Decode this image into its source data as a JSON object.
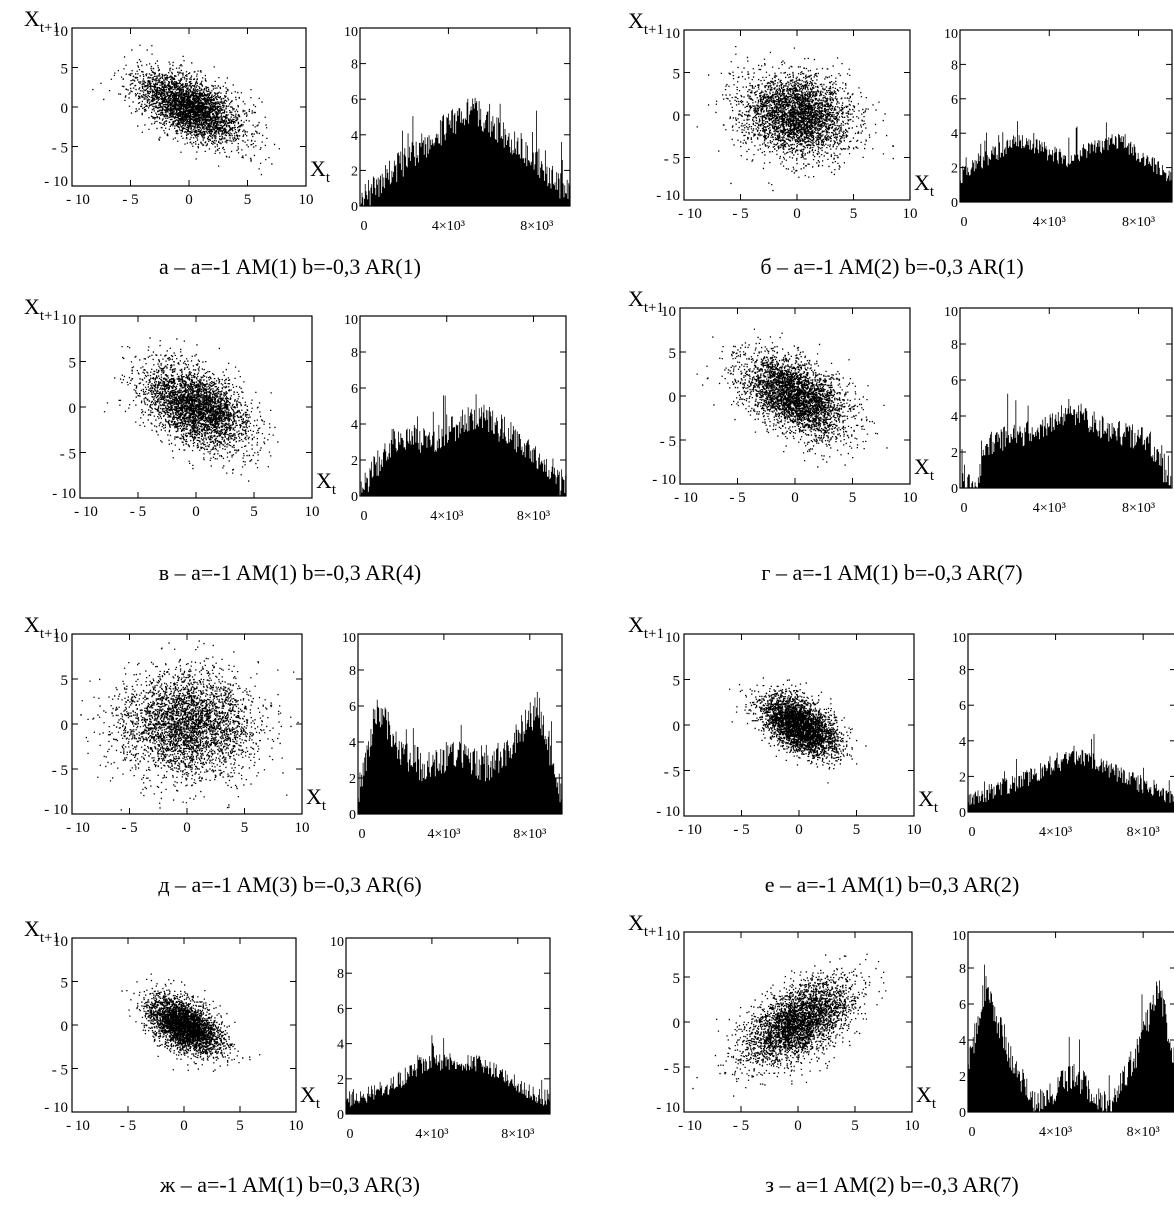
{
  "chart_data": [
    {
      "panel": "а",
      "caption": "а – a=-1 AM(1) b=-0,3 AR(1)",
      "scatter": {
        "type": "scatter",
        "ylabel_base": "X",
        "ylabel_sub": "t+1",
        "xlabel_base": "X",
        "xlabel_sub": "t",
        "xlim": [
          -10,
          10
        ],
        "ylim": [
          -10,
          10
        ],
        "x_ticks": [
          "- 10",
          "- 5",
          "0",
          "5",
          "10"
        ],
        "y_ticks": [
          "10",
          "5",
          "0",
          "- 5",
          "- 10"
        ],
        "spread": 2.2,
        "correlation": -0.55
      },
      "hist": {
        "type": "bar",
        "ylim": [
          0,
          10
        ],
        "y_ticks": [
          "10",
          "8",
          "6",
          "4",
          "2",
          "0"
        ],
        "x_ticks": [
          "0",
          "4×10³",
          "8×10³"
        ],
        "x_tick_values": [
          0,
          4000,
          8000
        ],
        "xlim": [
          0,
          9500
        ],
        "profile": [
          [
            0,
            0.3
          ],
          [
            2000,
            2.5
          ],
          [
            4000,
            4.5
          ],
          [
            5000,
            5.5
          ],
          [
            6000,
            4.5
          ],
          [
            8000,
            2.5
          ],
          [
            9500,
            0.6
          ]
        ],
        "noise": 1.6
      }
    },
    {
      "panel": "б",
      "caption": "б – a=-1 AM(2) b=-0,3 AR(1)",
      "scatter": {
        "type": "scatter",
        "ylabel_base": "X",
        "ylabel_sub": "t+1",
        "xlabel_base": "X",
        "xlabel_sub": "t",
        "xlim": [
          -10,
          10
        ],
        "ylim": [
          -10,
          10
        ],
        "x_ticks": [
          "- 10",
          "- 5",
          "0",
          "5",
          "10"
        ],
        "y_ticks": [
          "10",
          "5",
          "0",
          "- 5",
          "- 10"
        ],
        "spread": 2.4,
        "correlation": -0.1
      },
      "hist": {
        "type": "bar",
        "ylim": [
          0,
          10
        ],
        "y_ticks": [
          "10",
          "8",
          "6",
          "4",
          "2",
          "0"
        ],
        "x_ticks": [
          "0",
          "4×10³",
          "8×10³"
        ],
        "x_tick_values": [
          0,
          4000,
          8000
        ],
        "xlim": [
          0,
          9500
        ],
        "profile": [
          [
            0,
            1.5
          ],
          [
            2500,
            3.6
          ],
          [
            4800,
            2.5
          ],
          [
            7000,
            3.6
          ],
          [
            9500,
            1.5
          ]
        ],
        "noise": 1.0
      }
    },
    {
      "panel": "в",
      "caption": "в – a=-1 AM(1) b=-0,3 AR(4)",
      "scatter": {
        "type": "scatter",
        "ylabel_base": "X",
        "ylabel_sub": "t+1",
        "xlabel_base": "X",
        "xlabel_sub": "t",
        "xlim": [
          -10,
          10
        ],
        "ylim": [
          -10,
          10
        ],
        "x_ticks": [
          "- 10",
          "- 5",
          "0",
          "5",
          "10"
        ],
        "y_ticks": [
          "10",
          "5",
          "0",
          "- 5",
          "- 10"
        ],
        "spread": 2.3,
        "correlation": -0.45
      },
      "hist": {
        "type": "bar",
        "ylim": [
          0,
          10
        ],
        "y_ticks": [
          "10",
          "8",
          "6",
          "4",
          "2",
          "0"
        ],
        "x_ticks": [
          "0",
          "4×10³",
          "8×10³"
        ],
        "x_tick_values": [
          0,
          4000,
          8000
        ],
        "xlim": [
          0,
          9500
        ],
        "profile": [
          [
            0,
            0.3
          ],
          [
            1500,
            3.0
          ],
          [
            3500,
            3.2
          ],
          [
            5500,
            4.5
          ],
          [
            7500,
            3.0
          ],
          [
            9500,
            0.5
          ]
        ],
        "noise": 1.6
      }
    },
    {
      "panel": "г",
      "caption": "г – a=-1 AM(1) b=-0,3 AR(7)",
      "scatter": {
        "type": "scatter",
        "ylabel_base": "X",
        "ylabel_sub": "t+1",
        "xlabel_base": "X",
        "xlabel_sub": "t",
        "xlim": [
          -10,
          10
        ],
        "ylim": [
          -10,
          10
        ],
        "x_ticks": [
          "- 10",
          "- 5",
          "0",
          "5",
          "10"
        ],
        "y_ticks": [
          "10",
          "5",
          "0",
          "- 5",
          "- 10"
        ],
        "spread": 2.3,
        "correlation": -0.5
      },
      "hist": {
        "type": "bar",
        "ylim": [
          0,
          10
        ],
        "y_ticks": [
          "10",
          "8",
          "6",
          "4",
          "2",
          "0"
        ],
        "x_ticks": [
          "0",
          "4×10³",
          "8×10³"
        ],
        "x_tick_values": [
          0,
          4000,
          8000
        ],
        "xlim": [
          0,
          9500
        ],
        "profile": [
          [
            0,
            0
          ],
          [
            800,
            0.2
          ],
          [
            1200,
            2.5
          ],
          [
            3500,
            3.2
          ],
          [
            5000,
            4.3
          ],
          [
            6500,
            3.3
          ],
          [
            8500,
            2.6
          ],
          [
            9300,
            0.4
          ],
          [
            9500,
            0
          ]
        ],
        "noise": 1.4
      }
    },
    {
      "panel": "д",
      "caption": "д – a=-1 AM(3) b=-0,3 AR(6)",
      "scatter": {
        "type": "scatter",
        "ylabel_base": "X",
        "ylabel_sub": "t+1",
        "xlabel_base": "X",
        "xlabel_sub": "t",
        "xlim": [
          -10,
          10
        ],
        "ylim": [
          -10,
          10
        ],
        "x_ticks": [
          "- 10",
          "- 5",
          "0",
          "5",
          "10"
        ],
        "y_ticks": [
          "10",
          "5",
          "0",
          "- 5",
          "- 10"
        ],
        "spread": 2.9,
        "correlation": 0.0
      },
      "hist": {
        "type": "bar",
        "ylim": [
          0,
          10
        ],
        "y_ticks": [
          "10",
          "8",
          "6",
          "4",
          "2",
          "0"
        ],
        "x_ticks": [
          "0",
          "4×10³",
          "8×10³"
        ],
        "x_tick_values": [
          0,
          4000,
          8000
        ],
        "xlim": [
          0,
          9500
        ],
        "profile": [
          [
            0,
            1.0
          ],
          [
            900,
            6.0
          ],
          [
            2000,
            3.5
          ],
          [
            3200,
            2.5
          ],
          [
            4500,
            3.5
          ],
          [
            5800,
            2.5
          ],
          [
            7000,
            3.5
          ],
          [
            8400,
            6.0
          ],
          [
            9500,
            1.0
          ]
        ],
        "noise": 1.8
      }
    },
    {
      "panel": "е",
      "caption": "е – a=-1 AM(1) b=0,3 AR(2)",
      "scatter": {
        "type": "scatter",
        "ylabel_base": "X",
        "ylabel_sub": "t+1",
        "xlabel_base": "X",
        "xlabel_sub": "t",
        "xlim": [
          -10,
          10
        ],
        "ylim": [
          -10,
          10
        ],
        "x_ticks": [
          "- 10",
          "- 5",
          "0",
          "5",
          "10"
        ],
        "y_ticks": [
          "10",
          "5",
          "0",
          "- 5",
          "- 10"
        ],
        "spread": 1.6,
        "correlation": -0.5
      },
      "hist": {
        "type": "bar",
        "ylim": [
          0,
          10
        ],
        "y_ticks": [
          "10",
          "8",
          "6",
          "4",
          "2",
          "0"
        ],
        "x_ticks": [
          "0",
          "4×10³",
          "8×10³"
        ],
        "x_tick_values": [
          0,
          4000,
          8000
        ],
        "xlim": [
          0,
          9500
        ],
        "profile": [
          [
            0,
            0.6
          ],
          [
            2500,
            1.8
          ],
          [
            5000,
            3.2
          ],
          [
            7500,
            1.8
          ],
          [
            9500,
            0.6
          ]
        ],
        "noise": 1.0
      }
    },
    {
      "panel": "ж",
      "caption": "ж – a=-1 AM(1) b=0,3 AR(3)",
      "scatter": {
        "type": "scatter",
        "ylabel_base": "X",
        "ylabel_sub": "t+1",
        "xlabel_base": "X",
        "xlabel_sub": "t",
        "xlim": [
          -10,
          10
        ],
        "ylim": [
          -10,
          10
        ],
        "x_ticks": [
          "- 10",
          "- 5",
          "0",
          "5",
          "10"
        ],
        "y_ticks": [
          "10",
          "5",
          "0",
          "- 5",
          "- 10"
        ],
        "spread": 1.6,
        "correlation": -0.5
      },
      "hist": {
        "type": "bar",
        "ylim": [
          0,
          10
        ],
        "y_ticks": [
          "10",
          "8",
          "6",
          "4",
          "2",
          "0"
        ],
        "x_ticks": [
          "0",
          "4×10³",
          "8×10³"
        ],
        "x_tick_values": [
          0,
          4000,
          8000
        ],
        "xlim": [
          0,
          9500
        ],
        "profile": [
          [
            0,
            0.8
          ],
          [
            2000,
            1.5
          ],
          [
            3500,
            2.8
          ],
          [
            5000,
            3.0
          ],
          [
            6500,
            2.8
          ],
          [
            8000,
            1.5
          ],
          [
            9500,
            0.8
          ]
        ],
        "noise": 1.0
      }
    },
    {
      "panel": "з",
      "caption": "з – a=1 AM(2) b=-0,3 AR(7)",
      "scatter": {
        "type": "scatter",
        "ylabel_base": "X",
        "ylabel_sub": "t+1",
        "xlabel_base": "X",
        "xlabel_sub": "t",
        "xlim": [
          -10,
          10
        ],
        "ylim": [
          -10,
          10
        ],
        "x_ticks": [
          "- 10",
          "- 5",
          "0",
          "5",
          "10"
        ],
        "y_ticks": [
          "10",
          "5",
          "0",
          "- 5",
          "- 10"
        ],
        "spread": 2.3,
        "correlation": 0.55
      },
      "hist": {
        "type": "bar",
        "ylim": [
          0,
          10
        ],
        "y_ticks": [
          "10",
          "8",
          "6",
          "4",
          "2",
          "0"
        ],
        "x_ticks": [
          "0",
          "4×10³",
          "8×10³"
        ],
        "x_tick_values": [
          0,
          4000,
          8000
        ],
        "xlim": [
          0,
          9500
        ],
        "profile": [
          [
            0,
            2.5
          ],
          [
            800,
            7.0
          ],
          [
            1800,
            3.5
          ],
          [
            3000,
            0.3
          ],
          [
            4800,
            2.0
          ],
          [
            6500,
            0.3
          ],
          [
            7800,
            3.5
          ],
          [
            8700,
            7.0
          ],
          [
            9500,
            2.5
          ]
        ],
        "noise": 1.6
      }
    }
  ]
}
